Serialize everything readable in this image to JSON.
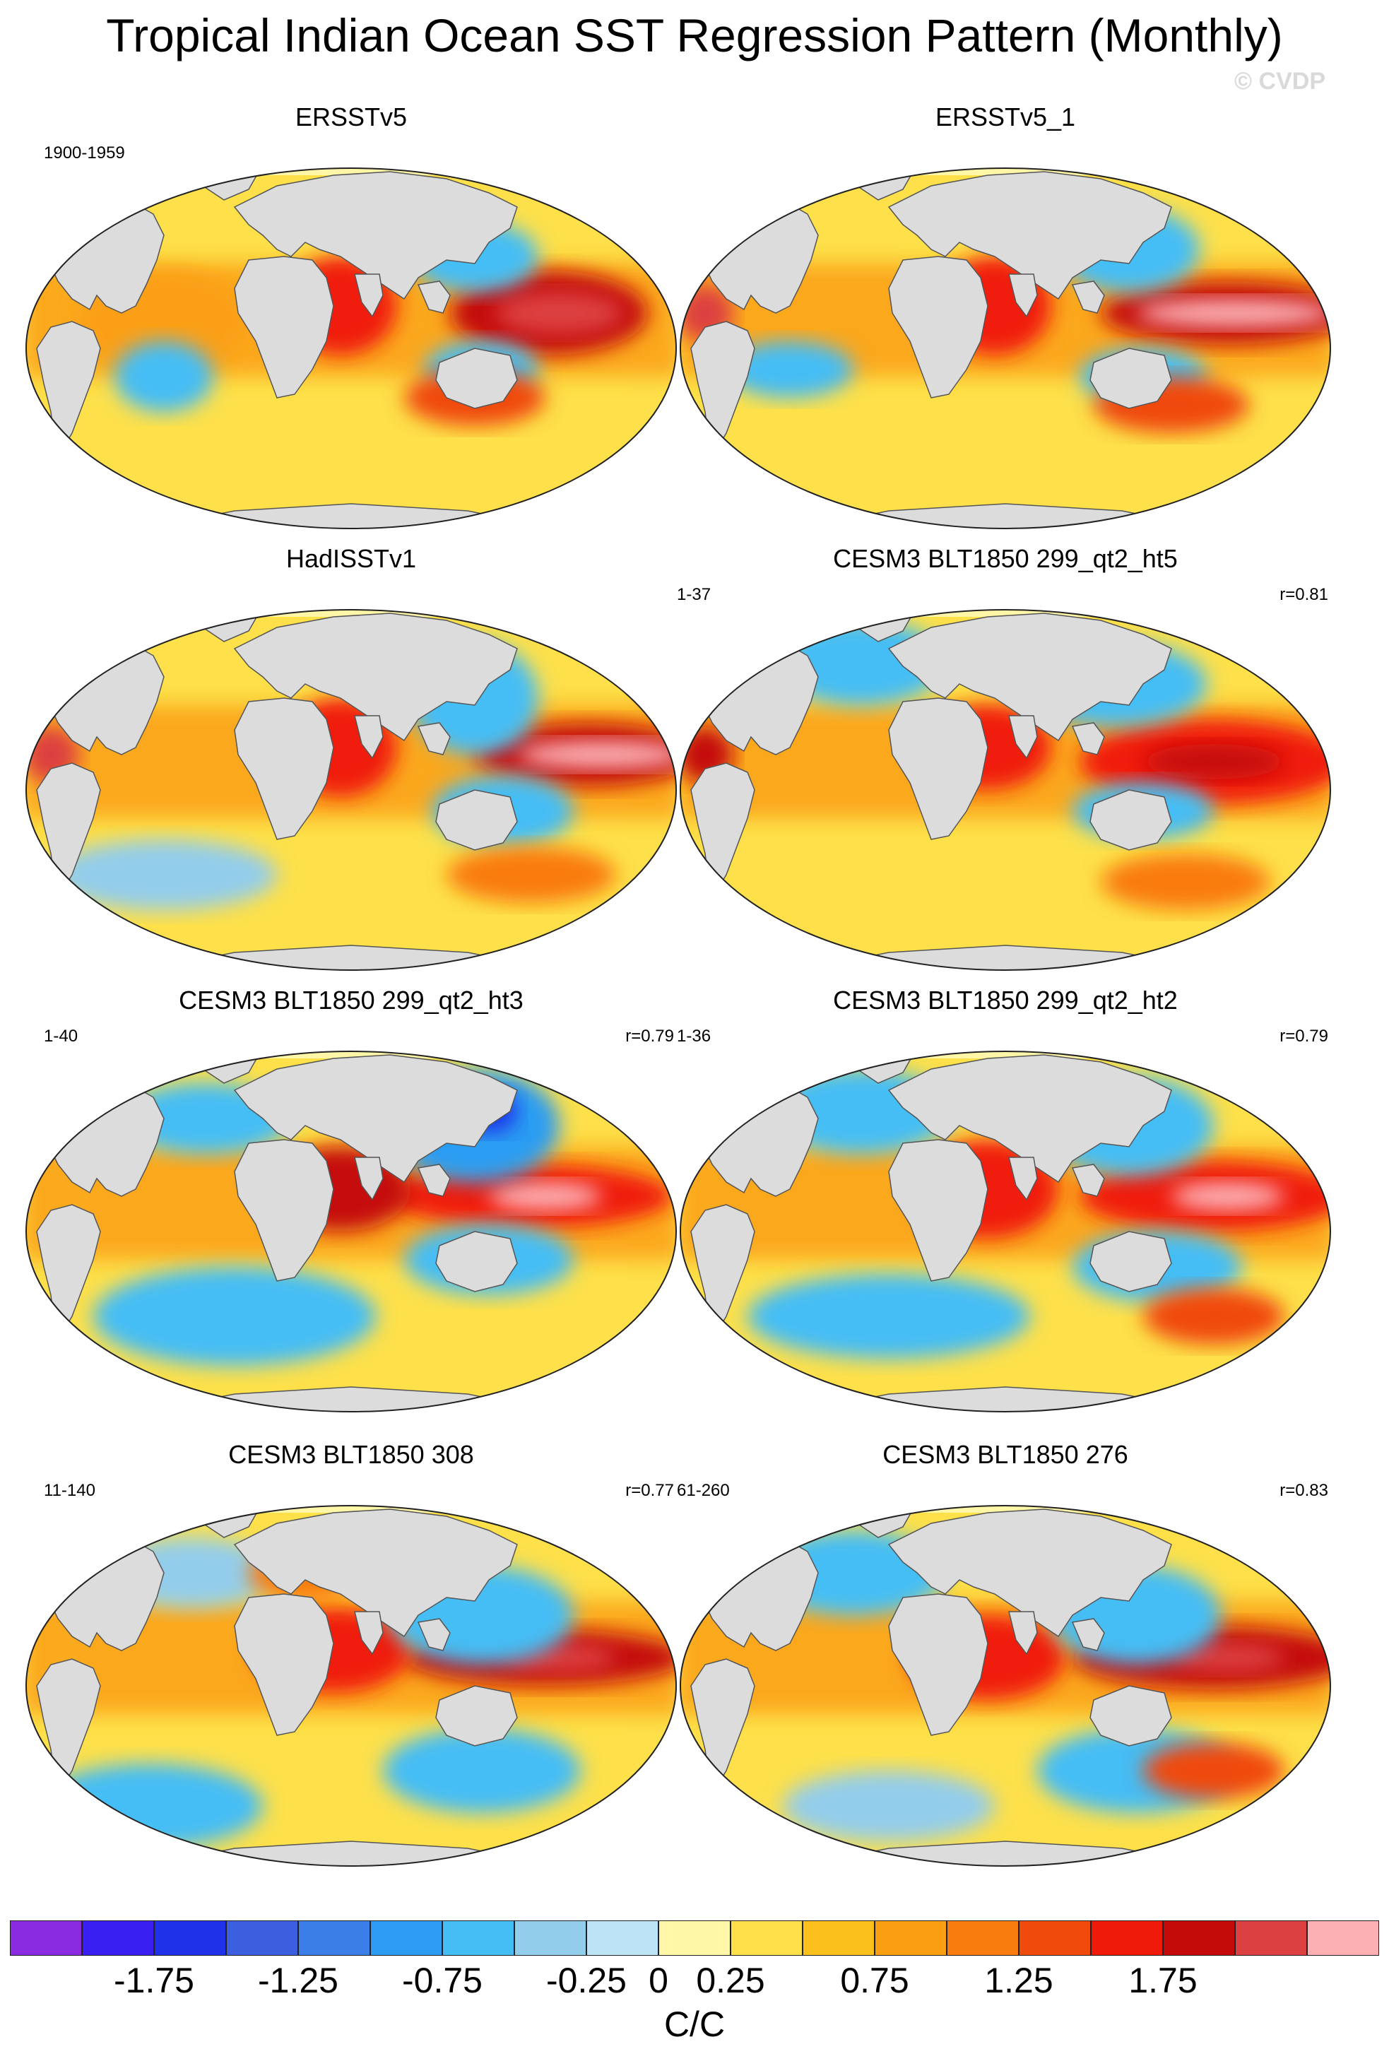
{
  "title": "Tropical Indian Ocean SST Regression Pattern (Monthly)",
  "watermark": "© CVDP",
  "panels": [
    {
      "title": "ERSSTv5",
      "years": "1900-1959",
      "r": "",
      "pattern": "obs1"
    },
    {
      "title": "ERSSTv5_1",
      "years": "",
      "r": "",
      "pattern": "obs2"
    },
    {
      "title": "HadISSTv1",
      "years": "",
      "r": "",
      "pattern": "obs3"
    },
    {
      "title": "CESM3 BLT1850 299_qt2_ht5",
      "years": "1-37",
      "r": "r=0.81",
      "pattern": "model1"
    },
    {
      "title": "CESM3 BLT1850 299_qt2_ht3",
      "years": "1-40",
      "r": "r=0.79",
      "pattern": "model2"
    },
    {
      "title": "CESM3 BLT1850 299_qt2_ht2",
      "years": "1-36",
      "r": "r=0.79",
      "pattern": "model3"
    },
    {
      "title": "CESM3 BLT1850 308",
      "years": "11-140",
      "r": "r=0.77",
      "pattern": "model4"
    },
    {
      "title": "CESM3 BLT1850 276",
      "years": "61-260",
      "r": "r=0.83",
      "pattern": "model5"
    }
  ],
  "colorbar": {
    "colors": [
      "#8a2be2",
      "#3a1ff2",
      "#1f32ea",
      "#3c5fdf",
      "#3b7ee8",
      "#2b9cf2",
      "#45bdf5",
      "#93cdec",
      "#bde3f6",
      "#fff6a8",
      "#fde04a",
      "#fcc01c",
      "#fb9f12",
      "#f97c0e",
      "#f04a0c",
      "#f01a0a",
      "#c50a0a",
      "#dd4040",
      "#fcb0b4"
    ],
    "ticks": [
      "-1.75",
      "-1.25",
      "-0.75",
      "-0.25",
      "0",
      "0.25",
      "0.75",
      "1.25",
      "1.75"
    ],
    "units": "C/C"
  }
}
